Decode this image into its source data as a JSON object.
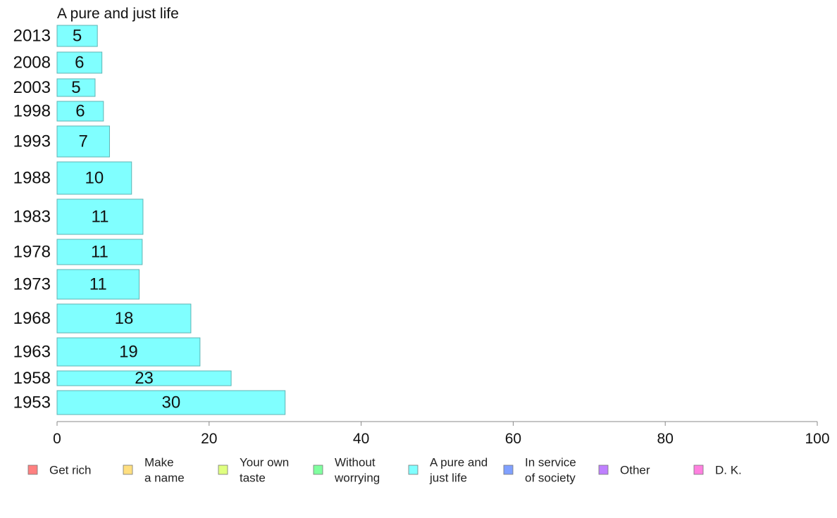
{
  "chart_data": {
    "type": "bar",
    "orientation": "horizontal",
    "title": "A pure and just life",
    "xlim": [
      0,
      100
    ],
    "x_ticks": [
      "0",
      "20",
      "40",
      "60",
      "80",
      "100"
    ],
    "categories": [
      "2013",
      "2008",
      "2003",
      "1998",
      "1993",
      "1988",
      "1983",
      "1978",
      "1973",
      "1968",
      "1963",
      "1958",
      "1953"
    ],
    "values": [
      5.3,
      5.9,
      5,
      6.1,
      6.9,
      9.8,
      11.3,
      11.2,
      10.8,
      17.6,
      18.8,
      22.9,
      30
    ],
    "value_labels": [
      "5",
      "6",
      "5",
      "6",
      "7",
      "10",
      "11",
      "11",
      "11",
      "18",
      "19",
      "23",
      "30"
    ],
    "bar_color": "#80ffff",
    "bar_stroke": "#5fb3b3",
    "legend": [
      {
        "label": "Get rich",
        "color": "#ff8080"
      },
      {
        "label": "Make\na name",
        "color": "#ffdf80"
      },
      {
        "label": "Your own\ntaste",
        "color": "#dfff80"
      },
      {
        "label": "Without\nworrying",
        "color": "#80ff9f"
      },
      {
        "label": "A pure and\njust life",
        "color": "#80ffff"
      },
      {
        "label": "In service\nof society",
        "color": "#80a0ff"
      },
      {
        "label": "Other",
        "color": "#bf80ff"
      },
      {
        "label": "D. K.",
        "color": "#ff80df"
      }
    ]
  }
}
